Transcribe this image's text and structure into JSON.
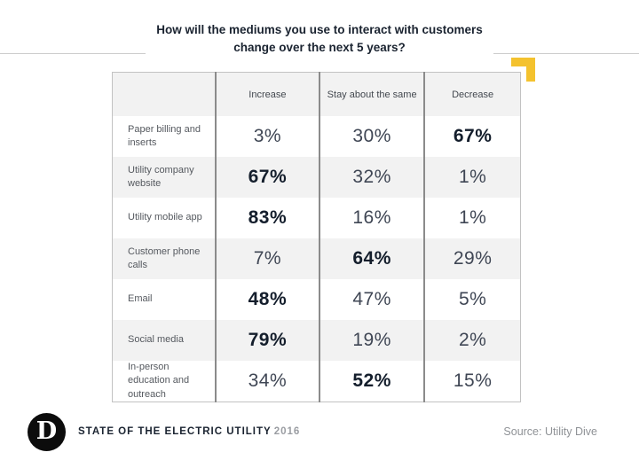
{
  "title": {
    "line1": "How will the mediums you use to interact with customers",
    "line2": "change over the next 5 years?"
  },
  "table": {
    "columns": [
      "Increase",
      "Stay about the same",
      "Decrease"
    ],
    "rows": [
      {
        "label": "Paper billing and inserts",
        "values": [
          "3%",
          "30%",
          "67%"
        ],
        "bold": 2
      },
      {
        "label": "Utility company website",
        "values": [
          "67%",
          "32%",
          "1%"
        ],
        "bold": 0
      },
      {
        "label": "Utility mobile app",
        "values": [
          "83%",
          "16%",
          "1%"
        ],
        "bold": 0
      },
      {
        "label": "Customer phone calls",
        "values": [
          "7%",
          "64%",
          "29%"
        ],
        "bold": 1
      },
      {
        "label": "Email",
        "values": [
          "48%",
          "47%",
          "5%"
        ],
        "bold": 0
      },
      {
        "label": "Social media",
        "values": [
          "79%",
          "19%",
          "2%"
        ],
        "bold": 0
      },
      {
        "label": "In-person education and outreach",
        "values": [
          "34%",
          "52%",
          "15%"
        ],
        "bold": 1
      }
    ]
  },
  "footer": {
    "logo_letter": "D",
    "brand": "STATE OF THE ELECTRIC UTILITY",
    "year": "2016",
    "source": "Source: Utility Dive"
  },
  "colors": {
    "accent_yellow": "#f4c22e",
    "dark_navy": "#1a2330",
    "stripe_gray": "#f2f2f2",
    "column_divider": "#8b8b8b",
    "table_border": "#c2c2c2"
  },
  "chart_data": {
    "type": "table",
    "title": "How will the mediums you use to interact with customers change over the next 5 years?",
    "columns": [
      "Increase",
      "Stay about the same",
      "Decrease"
    ],
    "categories": [
      "Paper billing and inserts",
      "Utility company website",
      "Utility mobile app",
      "Customer phone calls",
      "Email",
      "Social media",
      "In-person education and outreach"
    ],
    "values_percent": [
      [
        3,
        30,
        67
      ],
      [
        67,
        32,
        1
      ],
      [
        83,
        16,
        1
      ],
      [
        7,
        64,
        29
      ],
      [
        48,
        47,
        5
      ],
      [
        79,
        19,
        2
      ],
      [
        34,
        52,
        15
      ]
    ],
    "emphasized_column_per_row": [
      2,
      0,
      0,
      1,
      0,
      0,
      1
    ],
    "source": "Source: Utility Dive",
    "branding": "STATE OF THE ELECTRIC UTILITY 2016"
  }
}
